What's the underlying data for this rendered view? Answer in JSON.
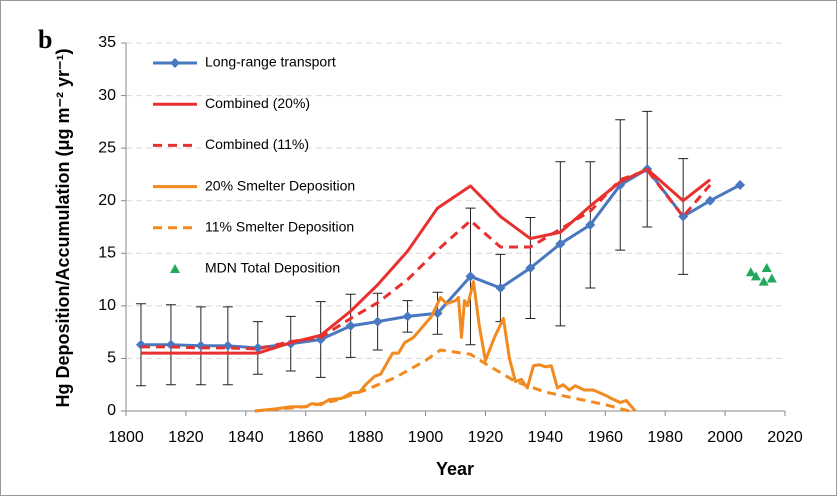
{
  "chart_data": {
    "type": "line",
    "panel_label": "b",
    "x_label": "Year",
    "y_label": "Hg Deposition/Accumulation (μg m⁻² yr⁻¹)",
    "xlim": [
      1800,
      2020
    ],
    "xticks": [
      1800,
      1820,
      1840,
      1860,
      1880,
      1900,
      1920,
      1940,
      1960,
      1980,
      2000,
      2020
    ],
    "ylim": [
      0,
      35
    ],
    "yticks": [
      0,
      5,
      10,
      15,
      20,
      25,
      30,
      35
    ],
    "grid": true,
    "legend": "top-left",
    "series": [
      {
        "name": "Long-range transport",
        "kind": "line",
        "color": "#4a78c0",
        "style": "solid",
        "marker": "diamond",
        "x": [
          1805,
          1815,
          1825,
          1834,
          1844,
          1855,
          1865,
          1875,
          1884,
          1894,
          1904,
          1915,
          1925,
          1935,
          1945,
          1955,
          1965,
          1974,
          1986,
          1995,
          2005
        ],
        "values": [
          6.3,
          6.3,
          6.2,
          6.2,
          6.0,
          6.4,
          6.8,
          8.1,
          8.5,
          9.0,
          9.3,
          12.8,
          11.7,
          13.6,
          15.9,
          17.7,
          21.5,
          23.0,
          18.5,
          20.0,
          21.5
        ],
        "errors": [
          3.9,
          3.8,
          3.7,
          3.7,
          2.5,
          2.6,
          3.6,
          3.0,
          2.7,
          1.5,
          2.0,
          6.5,
          3.2,
          4.8,
          7.8,
          6.0,
          6.2,
          5.5,
          5.5,
          null,
          null
        ]
      },
      {
        "name": "Combined (20%)",
        "kind": "line",
        "color": "#e8312f",
        "style": "solid",
        "x": [
          1805,
          1815,
          1825,
          1834,
          1844,
          1855,
          1865,
          1875,
          1884,
          1894,
          1904,
          1915,
          1925,
          1935,
          1945,
          1955,
          1965,
          1974,
          1986,
          1995
        ],
        "values": [
          5.5,
          5.5,
          5.5,
          5.5,
          5.5,
          6.5,
          7.2,
          9.5,
          12.0,
          15.2,
          19.3,
          21.4,
          18.5,
          16.4,
          17.0,
          19.5,
          21.8,
          23.0,
          20.0,
          22.0
        ]
      },
      {
        "name": "Combined (11%)",
        "kind": "line",
        "color": "#e8312f",
        "style": "dashed",
        "x": [
          1805,
          1815,
          1825,
          1834,
          1844,
          1855,
          1865,
          1875,
          1884,
          1894,
          1904,
          1915,
          1925,
          1935,
          1945,
          1955,
          1965,
          1974,
          1986,
          1995
        ],
        "values": [
          6.1,
          6.1,
          6.0,
          6.0,
          5.9,
          6.6,
          7.0,
          8.8,
          10.3,
          12.5,
          15.3,
          18.1,
          15.6,
          15.6,
          17.3,
          19.0,
          22.0,
          22.9,
          18.5,
          21.5
        ]
      },
      {
        "name": "20% Smelter Deposition",
        "kind": "line",
        "color": "#f28a1f",
        "style": "solid",
        "x": [
          1843,
          1850,
          1855,
          1860,
          1862,
          1865,
          1868,
          1872,
          1875,
          1878,
          1880,
          1883,
          1885,
          1887,
          1889,
          1891,
          1893,
          1896,
          1899,
          1902,
          1905,
          1907,
          1910,
          1911,
          1912,
          1913,
          1914,
          1916,
          1918,
          1920,
          1923,
          1926,
          1928,
          1930,
          1932,
          1934,
          1936,
          1938,
          1940,
          1942,
          1944,
          1946,
          1948,
          1950,
          1953,
          1956,
          1960,
          1962,
          1965,
          1967,
          1970
        ],
        "values": [
          0,
          0.2,
          0.4,
          0.4,
          0.7,
          0.6,
          1.1,
          1.2,
          1.7,
          1.8,
          2.5,
          3.3,
          3.5,
          4.5,
          5.5,
          5.5,
          6.5,
          7.0,
          8.0,
          9.0,
          10.8,
          10.2,
          10.5,
          10.8,
          7.0,
          10.5,
          10.0,
          12.3,
          8.0,
          4.8,
          7.0,
          8.8,
          5.0,
          2.8,
          3.0,
          2.2,
          4.3,
          4.4,
          4.2,
          4.3,
          2.2,
          2.5,
          2.0,
          2.4,
          2.0,
          2.0,
          1.5,
          1.2,
          0.8,
          1.0,
          0
        ]
      },
      {
        "name": "11% Smelter Deposition",
        "kind": "line",
        "color": "#f28a1f",
        "style": "dashed",
        "x": [
          1843,
          1860,
          1870,
          1880,
          1890,
          1900,
          1905,
          1915,
          1920,
          1930,
          1940,
          1950,
          1960,
          1968
        ],
        "values": [
          0,
          0.4,
          1.0,
          2.0,
          3.2,
          4.8,
          5.8,
          5.4,
          4.5,
          2.8,
          1.8,
          1.2,
          0.6,
          0
        ]
      },
      {
        "name": "MDN Total Deposition",
        "kind": "scatter",
        "color": "#22a85a",
        "marker": "triangle",
        "x": [
          2008.6,
          2010.3,
          2012.9,
          2013.9,
          2015.6
        ],
        "values": [
          13.2,
          12.8,
          12.3,
          13.6,
          12.6
        ]
      }
    ]
  }
}
